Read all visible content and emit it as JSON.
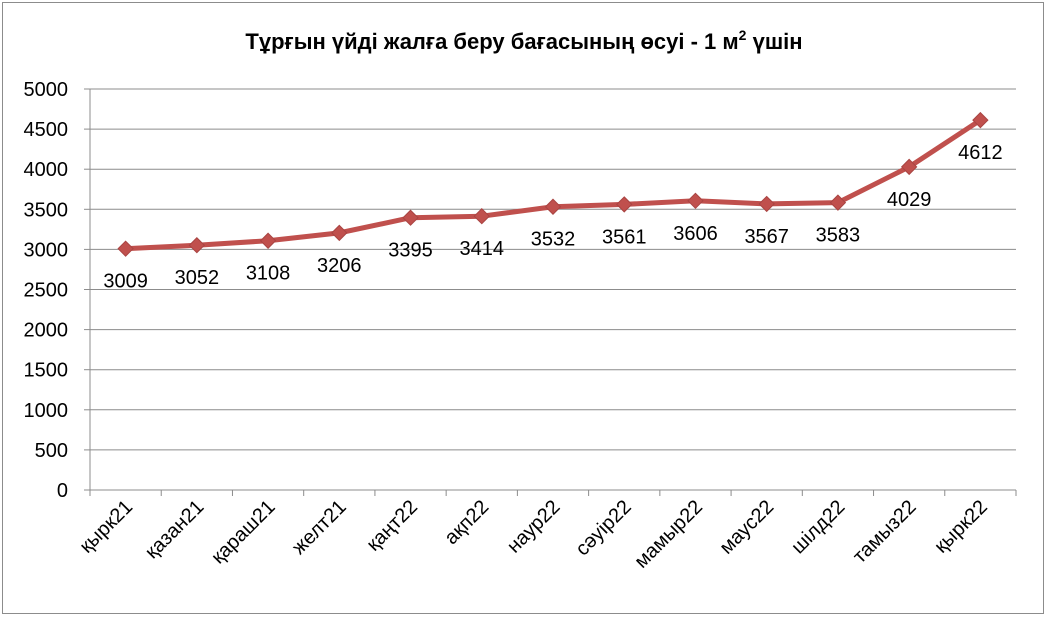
{
  "chart_data": {
    "type": "line",
    "title": "Тұрғын үйді жалға беру бағасының өсуі - 1 м",
    "title_superscript": "2",
    "title_suffix": " үшін",
    "categories": [
      "қырк21",
      "қазан21",
      "қараш21",
      "желт21",
      "қаңт22",
      "ақп22",
      "наур22",
      "сәуір22",
      "мамыр22",
      "маус22",
      "шілд22",
      "тамыз22",
      "қырк22"
    ],
    "series": [
      {
        "values": [
          3009,
          3052,
          3108,
          3206,
          3395,
          3414,
          3532,
          3561,
          3606,
          3567,
          3583,
          4029,
          4612
        ]
      }
    ],
    "data_labels": [
      "3009",
      "3052",
      "3108",
      "3206",
      "3395",
      "3414",
      "3532",
      "3561",
      "3606",
      "3567",
      "3583",
      "4029",
      "4612"
    ],
    "yticks": [
      "0",
      "500",
      "1000",
      "1500",
      "2000",
      "2500",
      "3000",
      "3500",
      "4000",
      "4500",
      "5000"
    ],
    "ylim": [
      0,
      5000
    ],
    "grid": true,
    "legend": "none",
    "line_color": "#c0504d",
    "marker_color": "#c0504d",
    "marker": "diamond"
  }
}
